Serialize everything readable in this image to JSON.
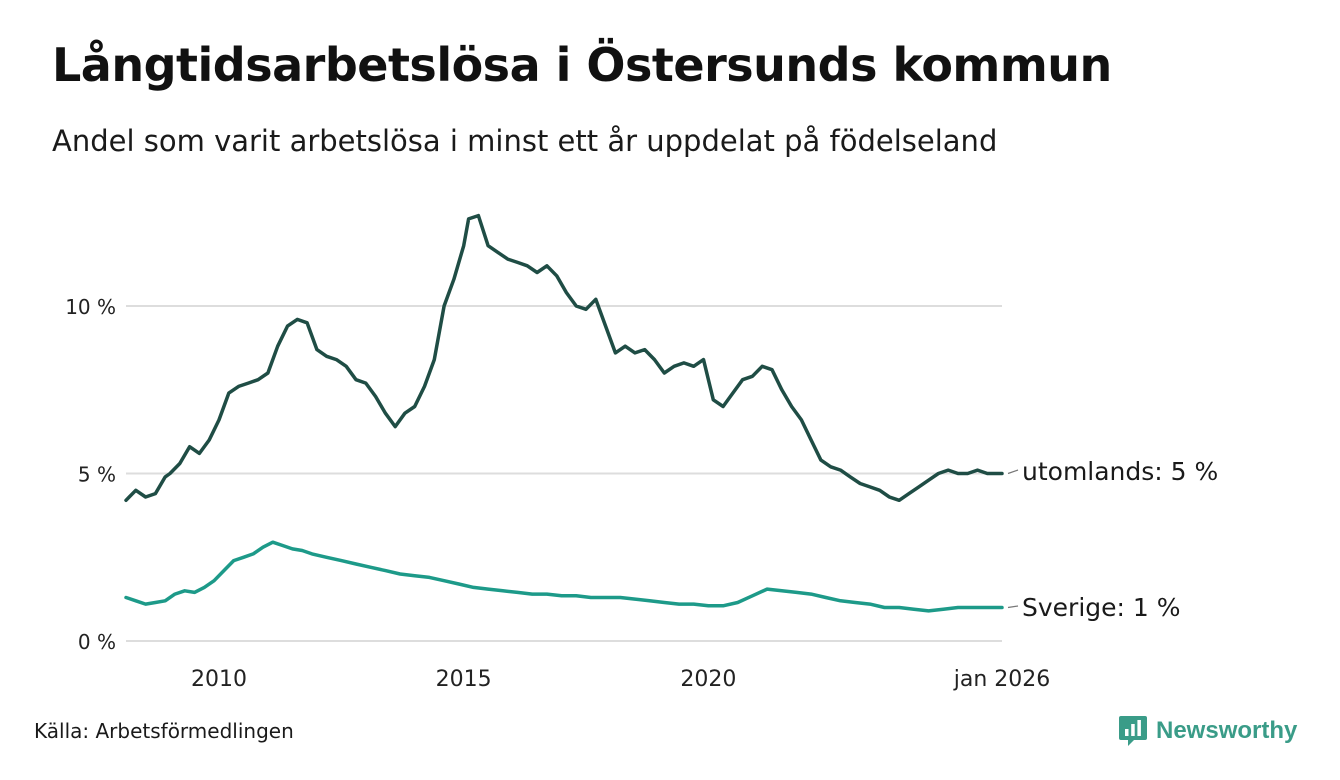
{
  "title": "Långtidsarbetslösa i Östersunds kommun",
  "subtitle": "Andel som varit arbetslösa i minst ett år uppdelat på födelseland",
  "source": "Källa: Arbetsförmedlingen",
  "brand": {
    "name": "Newsworthy",
    "icon": "newsworthy-logo-icon",
    "color": "#3a9c88"
  },
  "colors": {
    "utomlands": "#1f4d45",
    "sverige": "#1d9a89",
    "grid": "#dddddd"
  },
  "chart_data": {
    "type": "line",
    "title": "Långtidsarbetslösa i Östersunds kommun",
    "xlabel": "",
    "ylabel": "",
    "ylim": [
      0,
      13
    ],
    "xlim": [
      2008.1,
      2026.0
    ],
    "yticks": [
      {
        "value": 0,
        "label": "0 %"
      },
      {
        "value": 5,
        "label": "5 %"
      },
      {
        "value": 10,
        "label": "10 %"
      }
    ],
    "xticks": [
      {
        "value": 2010,
        "label": "2010"
      },
      {
        "value": 2015,
        "label": "2015"
      },
      {
        "value": 2020,
        "label": "2020"
      },
      {
        "value": 2026,
        "label": "jan 2026"
      }
    ],
    "grid": true,
    "series": [
      {
        "name": "utomlands",
        "end_label": "utomlands: 5 %",
        "x": [
          2008.1,
          2008.3,
          2008.5,
          2008.7,
          2008.9,
          2009.0,
          2009.2,
          2009.4,
          2009.6,
          2009.8,
          2010.0,
          2010.2,
          2010.4,
          2010.6,
          2010.8,
          2011.0,
          2011.2,
          2011.4,
          2011.6,
          2011.8,
          2012.0,
          2012.2,
          2012.4,
          2012.6,
          2012.8,
          2013.0,
          2013.2,
          2013.4,
          2013.6,
          2013.8,
          2014.0,
          2014.2,
          2014.4,
          2014.6,
          2014.8,
          2015.0,
          2015.1,
          2015.3,
          2015.5,
          2015.7,
          2015.9,
          2016.1,
          2016.3,
          2016.5,
          2016.7,
          2016.9,
          2017.1,
          2017.3,
          2017.5,
          2017.7,
          2017.9,
          2018.1,
          2018.3,
          2018.5,
          2018.7,
          2018.9,
          2019.1,
          2019.3,
          2019.5,
          2019.7,
          2019.9,
          2020.1,
          2020.3,
          2020.5,
          2020.7,
          2020.9,
          2021.1,
          2021.3,
          2021.5,
          2021.7,
          2021.9,
          2022.1,
          2022.3,
          2022.5,
          2022.7,
          2022.9,
          2023.1,
          2023.3,
          2023.5,
          2023.7,
          2023.9,
          2024.1,
          2024.3,
          2024.5,
          2024.7,
          2024.9,
          2025.1,
          2025.3,
          2025.5,
          2025.7,
          2026.0
        ],
        "values": [
          4.2,
          4.5,
          4.3,
          4.4,
          4.9,
          5.0,
          5.3,
          5.8,
          5.6,
          6.0,
          6.6,
          7.4,
          7.6,
          7.7,
          7.8,
          8.0,
          8.8,
          9.4,
          9.6,
          9.5,
          8.7,
          8.5,
          8.4,
          8.2,
          7.8,
          7.7,
          7.3,
          6.8,
          6.4,
          6.8,
          7.0,
          7.6,
          8.4,
          10.0,
          10.8,
          11.8,
          12.6,
          12.7,
          11.8,
          11.6,
          11.4,
          11.3,
          11.2,
          11.0,
          11.2,
          10.9,
          10.4,
          10.0,
          9.9,
          10.2,
          9.4,
          8.6,
          8.8,
          8.6,
          8.7,
          8.4,
          8.0,
          8.2,
          8.3,
          8.2,
          8.4,
          7.2,
          7.0,
          7.4,
          7.8,
          7.9,
          8.2,
          8.1,
          7.5,
          7.0,
          6.6,
          6.0,
          5.4,
          5.2,
          5.1,
          4.9,
          4.7,
          4.6,
          4.5,
          4.3,
          4.2,
          4.4,
          4.6,
          4.8,
          5.0,
          5.1,
          5.0,
          5.0,
          5.1,
          5.0,
          5.0
        ]
      },
      {
        "name": "Sverige",
        "end_label": "Sverige: 1 %",
        "x": [
          2008.1,
          2008.3,
          2008.5,
          2008.7,
          2008.9,
          2009.1,
          2009.3,
          2009.5,
          2009.7,
          2009.9,
          2010.1,
          2010.3,
          2010.5,
          2010.7,
          2010.9,
          2011.1,
          2011.3,
          2011.5,
          2011.7,
          2011.9,
          2012.2,
          2012.5,
          2012.8,
          2013.1,
          2013.4,
          2013.7,
          2014.0,
          2014.3,
          2014.6,
          2014.9,
          2015.2,
          2015.5,
          2015.8,
          2016.1,
          2016.4,
          2016.7,
          2017.0,
          2017.3,
          2017.6,
          2017.9,
          2018.2,
          2018.5,
          2018.8,
          2019.1,
          2019.4,
          2019.7,
          2020.0,
          2020.3,
          2020.6,
          2020.9,
          2021.2,
          2021.5,
          2021.8,
          2022.1,
          2022.4,
          2022.7,
          2023.0,
          2023.3,
          2023.6,
          2023.9,
          2024.2,
          2024.5,
          2024.8,
          2025.1,
          2025.4,
          2025.7,
          2026.0
        ],
        "values": [
          1.3,
          1.2,
          1.1,
          1.15,
          1.2,
          1.4,
          1.5,
          1.45,
          1.6,
          1.8,
          2.1,
          2.4,
          2.5,
          2.6,
          2.8,
          2.95,
          2.85,
          2.75,
          2.7,
          2.6,
          2.5,
          2.4,
          2.3,
          2.2,
          2.1,
          2.0,
          1.95,
          1.9,
          1.8,
          1.7,
          1.6,
          1.55,
          1.5,
          1.45,
          1.4,
          1.4,
          1.35,
          1.35,
          1.3,
          1.3,
          1.3,
          1.25,
          1.2,
          1.15,
          1.1,
          1.1,
          1.05,
          1.05,
          1.15,
          1.35,
          1.55,
          1.5,
          1.45,
          1.4,
          1.3,
          1.2,
          1.15,
          1.1,
          1.0,
          1.0,
          0.95,
          0.9,
          0.95,
          1.0,
          1.0,
          1.0,
          1.0
        ]
      }
    ]
  }
}
